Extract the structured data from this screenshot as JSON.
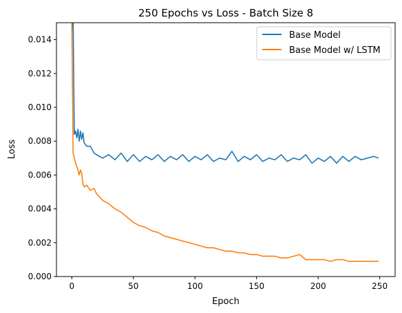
{
  "chart_data": {
    "type": "line",
    "title": "250 Epochs vs Loss - Batch Size 8",
    "xlabel": "Epoch",
    "ylabel": "Loss",
    "xlim": [
      -12.5,
      262.5
    ],
    "ylim": [
      0.0,
      0.015
    ],
    "x_ticks": [
      0,
      50,
      100,
      150,
      200,
      250
    ],
    "x_tick_labels": [
      "0",
      "50",
      "100",
      "150",
      "200",
      "250"
    ],
    "y_ticks": [
      0.0,
      0.002,
      0.004,
      0.006,
      0.008,
      0.01,
      0.012,
      0.014
    ],
    "y_tick_labels": [
      "0.000",
      "0.002",
      "0.004",
      "0.006",
      "0.008",
      "0.010",
      "0.012",
      "0.014"
    ],
    "grid": false,
    "legend_position": "top-right",
    "series": [
      {
        "name": "Base Model",
        "color": "#1f77b4",
        "x": [
          0,
          1,
          2,
          3,
          4,
          5,
          6,
          7,
          8,
          9,
          10,
          12,
          15,
          18,
          20,
          25,
          30,
          35,
          40,
          45,
          50,
          55,
          60,
          65,
          70,
          75,
          80,
          85,
          90,
          95,
          100,
          105,
          110,
          115,
          120,
          125,
          130,
          135,
          140,
          145,
          150,
          155,
          160,
          165,
          170,
          175,
          180,
          185,
          190,
          195,
          200,
          205,
          210,
          215,
          220,
          225,
          230,
          235,
          240,
          245,
          249
        ],
        "values": [
          0.0145,
          0.0155,
          0.0084,
          0.0086,
          0.0082,
          0.0087,
          0.008,
          0.0086,
          0.0081,
          0.0085,
          0.0079,
          0.0077,
          0.0077,
          0.0073,
          0.0072,
          0.007,
          0.0072,
          0.0069,
          0.0073,
          0.0068,
          0.0072,
          0.0068,
          0.0071,
          0.0069,
          0.0072,
          0.0068,
          0.0071,
          0.0069,
          0.0072,
          0.0068,
          0.0071,
          0.0069,
          0.0072,
          0.0068,
          0.007,
          0.0069,
          0.0074,
          0.0068,
          0.0071,
          0.0069,
          0.0072,
          0.0068,
          0.007,
          0.0069,
          0.0072,
          0.0068,
          0.007,
          0.0069,
          0.0072,
          0.0067,
          0.007,
          0.0068,
          0.0071,
          0.0067,
          0.0071,
          0.0068,
          0.0071,
          0.0069,
          0.007,
          0.0071,
          0.007
        ]
      },
      {
        "name": "Base Model w/ LSTM",
        "color": "#ff7f0e",
        "x": [
          0,
          1,
          2,
          3,
          4,
          5,
          6,
          7,
          8,
          9,
          10,
          12,
          15,
          18,
          20,
          25,
          30,
          35,
          40,
          45,
          50,
          55,
          60,
          65,
          70,
          75,
          80,
          85,
          90,
          95,
          100,
          105,
          110,
          115,
          120,
          125,
          130,
          135,
          140,
          145,
          150,
          155,
          160,
          165,
          170,
          175,
          180,
          185,
          190,
          195,
          200,
          205,
          210,
          215,
          220,
          225,
          230,
          235,
          240,
          245,
          249
        ],
        "values": [
          0.0152,
          0.0073,
          0.007,
          0.0067,
          0.0065,
          0.0063,
          0.006,
          0.0063,
          0.0061,
          0.0055,
          0.0053,
          0.0054,
          0.0051,
          0.0052,
          0.0049,
          0.0045,
          0.0043,
          0.004,
          0.0038,
          0.0035,
          0.0032,
          0.003,
          0.0029,
          0.0027,
          0.0026,
          0.0024,
          0.0023,
          0.0022,
          0.0021,
          0.002,
          0.0019,
          0.0018,
          0.0017,
          0.0017,
          0.0016,
          0.0015,
          0.0015,
          0.0014,
          0.0014,
          0.0013,
          0.0013,
          0.0012,
          0.0012,
          0.0012,
          0.0011,
          0.0011,
          0.0012,
          0.0013,
          0.001,
          0.001,
          0.001,
          0.001,
          0.0009,
          0.001,
          0.001,
          0.0009,
          0.0009,
          0.0009,
          0.0009,
          0.0009,
          0.0009
        ]
      }
    ]
  }
}
